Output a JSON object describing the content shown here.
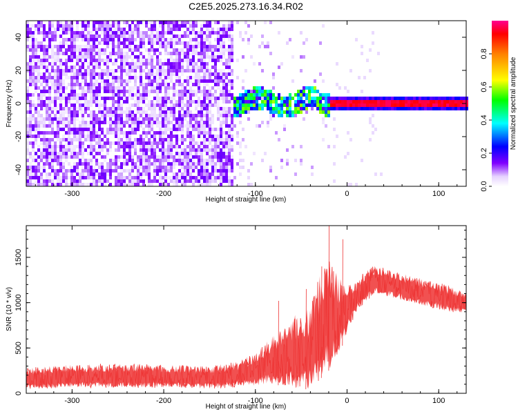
{
  "title": "C2E5.2025.273.16.34.R02",
  "chart_data": [
    {
      "type": "heatmap",
      "xlabel": "Height of straight line (km)",
      "ylabel": "Frequency (Hz)",
      "xlim": [
        -350,
        130
      ],
      "ylim": [
        -50,
        50
      ],
      "x_ticks": [
        -300,
        -200,
        -100,
        0,
        100
      ],
      "x_tick_labels": [
        "-300",
        "-200",
        "-100",
        "0",
        "100"
      ],
      "y_ticks": [
        -40,
        -20,
        0,
        20,
        40
      ],
      "y_tick_labels": [
        "-40",
        "-20",
        "0",
        "20",
        "40"
      ],
      "colorbar": {
        "label": "Normalized spectral amplitude",
        "range": [
          0,
          1
        ],
        "ticks": [
          0.0,
          0.2,
          0.4,
          0.6,
          0.8
        ],
        "tick_labels": [
          "0.0",
          "0.2",
          "0.4",
          "0.6",
          "0.8"
        ]
      },
      "regions": [
        {
          "name": "broadband-noise",
          "x_range": [
            -350,
            -125
          ],
          "freq_range": [
            -50,
            50
          ],
          "amplitude_range": [
            0.0,
            0.3
          ]
        },
        {
          "name": "sparse-noise",
          "x_range": [
            -125,
            -20
          ],
          "freq_range": [
            -50,
            50
          ],
          "amplitude_range": [
            0.0,
            0.15
          ]
        },
        {
          "name": "transition-band",
          "x_range": [
            -125,
            -20
          ],
          "freq_range": [
            -7,
            10
          ],
          "amplitude_range": [
            0.2,
            0.6
          ]
        },
        {
          "name": "narrow-line",
          "x_range": [
            -20,
            130
          ],
          "freq_center": 1,
          "freq_halfwidth": 1.5,
          "amplitude_range": [
            0.9,
            1.0
          ]
        }
      ]
    },
    {
      "type": "line",
      "xlabel": "Height of straight line (km)",
      "ylabel": "SNR (10 * v/v)",
      "xlim": [
        -350,
        130
      ],
      "ylim": [
        0,
        1850
      ],
      "x_ticks": [
        -300,
        -200,
        -100,
        0,
        100
      ],
      "x_tick_labels": [
        "-300",
        "-200",
        "-100",
        "0",
        "100"
      ],
      "y_ticks": [
        0,
        500,
        1000,
        1500
      ],
      "y_tick_labels": [
        "0",
        "500",
        "1000",
        "1500"
      ],
      "color": "#ee3333",
      "series": [
        {
          "name": "SNR",
          "x": [
            -350,
            -300,
            -250,
            -200,
            -150,
            -120,
            -100,
            -80,
            -60,
            -40,
            -30,
            -20,
            -10,
            0,
            10,
            20,
            30,
            50,
            70,
            90,
            110,
            130
          ],
          "lower": [
            40,
            60,
            60,
            60,
            50,
            60,
            80,
            100,
            60,
            40,
            150,
            250,
            400,
            650,
            900,
            1000,
            1100,
            1050,
            1000,
            950,
            900,
            880
          ],
          "upper": [
            280,
            320,
            330,
            320,
            300,
            350,
            450,
            650,
            850,
            950,
            1300,
            1500,
            1300,
            1200,
            1250,
            1350,
            1420,
            1350,
            1300,
            1250,
            1200,
            1100
          ],
          "spikes": [
            [
              -75,
              1020
            ],
            [
              -45,
              1150
            ],
            [
              -28,
              1400
            ],
            [
              -20,
              1850
            ],
            [
              -5,
              1700
            ]
          ]
        }
      ]
    }
  ]
}
